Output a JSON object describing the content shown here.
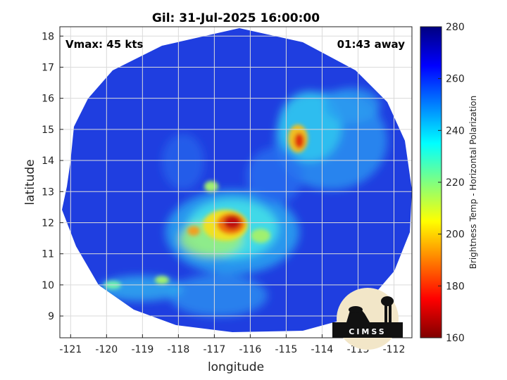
{
  "title": "Gil: 31-Jul-2025 16:00:00",
  "annotations": {
    "vmax": "Vmax: 45 kts",
    "away": "01:43 away"
  },
  "axes": {
    "xlabel": "longitude",
    "ylabel": "latitude",
    "xticks": [
      -121,
      -120,
      -119,
      -118,
      -117,
      -116,
      -115,
      -114,
      -113,
      -112
    ],
    "yticks": [
      9,
      10,
      11,
      12,
      13,
      14,
      15,
      16,
      17,
      18
    ],
    "xlim": [
      -121.3,
      -111.5
    ],
    "ylim": [
      8.3,
      18.3
    ],
    "grid": true
  },
  "colorbar": {
    "label": "Brightness Temp - Horizontal Polarization",
    "ticks": [
      160,
      180,
      200,
      220,
      240,
      260,
      280
    ],
    "range": [
      160,
      280
    ],
    "colormap": "jet"
  },
  "logo": {
    "text": "CIMSS"
  },
  "colors": {
    "background_ocean": "#1f3ee0",
    "cold_core": "#b01010"
  }
}
